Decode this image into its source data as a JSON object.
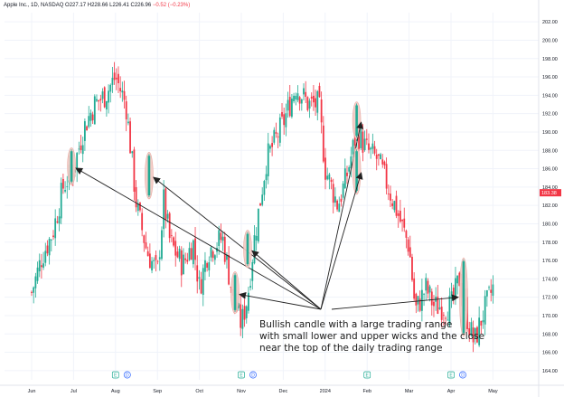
{
  "header": {
    "symbol": "Apple Inc., 1D, NASDAQ",
    "o": "O227.17",
    "h": "H228.66",
    "l": "L226.41",
    "c": "C226.96",
    "change": "−0.52 (−0.23%)"
  },
  "price_scale_badge": "183.38",
  "event_markers": [
    {
      "month_index": 2,
      "items": [
        "E",
        "D"
      ]
    },
    {
      "month_index": 5,
      "items": [
        "E",
        "D"
      ]
    },
    {
      "month_index": 8,
      "items": [
        "E"
      ]
    },
    {
      "month_index": 10,
      "items": [
        "E",
        "D"
      ]
    }
  ],
  "annotation": {
    "lines": [
      "Bullish candle with a large trading range",
      "with small lower and upper wicks and the close",
      "near the top of the daily trading range"
    ]
  },
  "colors": {
    "up": "#22ab94",
    "down": "#f23645",
    "highlight": "#f2c9c4",
    "arrow": "#222222",
    "grid": "#f0f3fa",
    "axis_text": "#131722"
  },
  "chart_data": {
    "type": "candlestick",
    "title": "Apple Inc., 1D, NASDAQ",
    "x_tick_labels": [
      "Jun",
      "Jul",
      "Aug",
      "Sep",
      "Oct",
      "Nov",
      "Dec",
      "2024",
      "Feb",
      "Mar",
      "Apr",
      "May"
    ],
    "y_tick_labels": [
      164,
      166,
      168,
      170,
      172,
      174,
      176,
      178,
      180,
      182,
      184,
      186,
      188,
      190,
      192,
      194,
      196,
      198,
      200,
      202
    ],
    "ylim": [
      163,
      203
    ],
    "path_points": [
      [
        0,
        172.5
      ],
      [
        0.25,
        176.5
      ],
      [
        0.5,
        179
      ],
      [
        0.75,
        184
      ],
      [
        1.0,
        186
      ],
      [
        1.25,
        190.5
      ],
      [
        1.5,
        193
      ],
      [
        1.75,
        194
      ],
      [
        2.0,
        196
      ],
      [
        2.25,
        193
      ],
      [
        2.5,
        182
      ],
      [
        2.75,
        177
      ],
      [
        3.0,
        174.5
      ],
      [
        3.15,
        182.5
      ],
      [
        3.3,
        178
      ],
      [
        3.6,
        175.5
      ],
      [
        3.85,
        178
      ],
      [
        4.0,
        173
      ],
      [
        4.2,
        177
      ],
      [
        4.55,
        178.5
      ],
      [
        4.8,
        172
      ],
      [
        5.0,
        169
      ],
      [
        5.15,
        172
      ],
      [
        5.3,
        178
      ],
      [
        5.6,
        187
      ],
      [
        6.0,
        191
      ],
      [
        6.3,
        195
      ],
      [
        6.6,
        193
      ],
      [
        6.85,
        193
      ],
      [
        7.0,
        186
      ],
      [
        7.3,
        182
      ],
      [
        7.5,
        185
      ],
      [
        7.75,
        190
      ],
      [
        8.0,
        188
      ],
      [
        8.25,
        187
      ],
      [
        8.5,
        184
      ],
      [
        8.7,
        181.5
      ],
      [
        9.0,
        177.5
      ],
      [
        9.15,
        170.5
      ],
      [
        9.4,
        173
      ],
      [
        9.6,
        171
      ],
      [
        9.85,
        171
      ],
      [
        10.0,
        171
      ],
      [
        10.2,
        174
      ],
      [
        10.4,
        169.5
      ],
      [
        10.55,
        167
      ],
      [
        10.75,
        170
      ],
      [
        11.0,
        173
      ]
    ],
    "highlighted_candles": [
      {
        "x": 0.95,
        "low": 184.5,
        "high": 188
      },
      {
        "x": 2.8,
        "low": 183,
        "high": 187.5
      },
      {
        "x": 4.85,
        "low": 170.5,
        "high": 174.5
      },
      {
        "x": 5.15,
        "low": 175.5,
        "high": 179
      },
      {
        "x": 7.75,
        "low": 189.5,
        "high": 193
      },
      {
        "x": 7.75,
        "low": 183.5,
        "high": 188
      },
      {
        "x": 10.3,
        "low": 168,
        "high": 176
      }
    ],
    "arrows_target_candles": [
      0,
      1,
      2,
      3,
      4,
      5,
      6
    ],
    "last_price": 183.38
  }
}
